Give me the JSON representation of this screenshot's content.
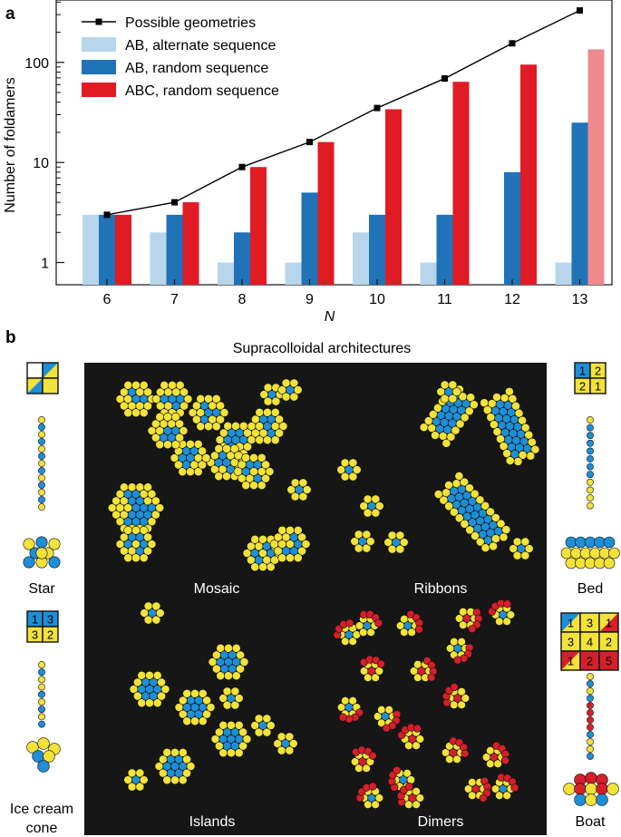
{
  "panel_labels": {
    "a": "a",
    "b": "b"
  },
  "chart_data": {
    "type": "bar",
    "scale": "log",
    "xlabel": "N",
    "ylabel": "Number of foldamers",
    "categories": [
      "6",
      "7",
      "8",
      "9",
      "10",
      "11",
      "12",
      "13"
    ],
    "ylim": [
      0.6,
      420
    ],
    "yticks": [
      {
        "value": 1,
        "label": "1"
      },
      {
        "value": 10,
        "label": "10"
      },
      {
        "value": 100,
        "label": "100"
      }
    ],
    "series": [
      {
        "name": "AB, alternate sequence",
        "color": "#b7d6ec",
        "values": [
          3,
          2,
          1,
          1,
          2,
          1,
          null,
          1
        ]
      },
      {
        "name": "AB, random sequence",
        "color": "#1f73b6",
        "values": [
          3,
          3,
          2,
          5,
          3,
          3,
          8,
          25
        ]
      },
      {
        "name": "ABC, random sequence",
        "color": "#e01b24",
        "alt_color_last": "#ef8a8e",
        "values": [
          3,
          4,
          9,
          16,
          34,
          64,
          95,
          135
        ]
      }
    ],
    "line": {
      "name": "Possible geometries",
      "color": "#000000",
      "values": [
        3,
        4,
        9,
        16,
        35,
        69,
        155,
        330
      ]
    },
    "legend_position": "top-left"
  },
  "panel_b": {
    "title": "Supracolloidal architectures",
    "grid_left": {
      "cells": [
        "",
        "",
        "",
        ""
      ]
    },
    "grid_right_top": {
      "cells": [
        "1",
        "2",
        "2",
        "1"
      ]
    },
    "grid_left_bottom": {
      "cells": [
        "1",
        "3",
        "3",
        "2"
      ]
    },
    "grid_boat": {
      "cells": [
        "1",
        "3",
        "1",
        "3",
        "4",
        "2",
        "1",
        "2",
        "5"
      ]
    },
    "side_labels": {
      "star": "Star",
      "bed": "Bed",
      "icecream": "Ice cream cone",
      "icecream_line1": "Ice cream",
      "icecream_line2": "cone",
      "boat": "Boat"
    },
    "micrograph_labels": {
      "mosaic": "Mosaic",
      "ribbons": "Ribbons",
      "islands": "Islands",
      "dimers": "Dimers"
    },
    "colors": {
      "blue": "#1e8fd6",
      "yellow": "#f2e23a",
      "red": "#d4202a",
      "bg": "#161616"
    }
  }
}
